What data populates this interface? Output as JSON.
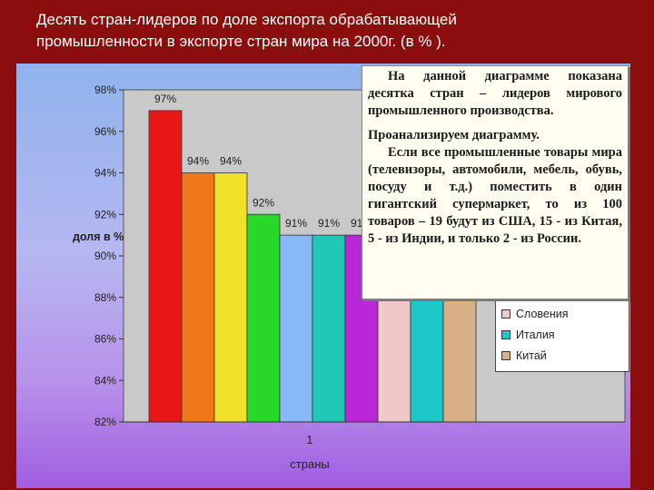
{
  "slide": {
    "title_line1": "Десять стран-лидеров по доле экспорта обрабатывающей",
    "title_line2": "промышленности в экспорте стран мира на 2000г. (в % )."
  },
  "note": {
    "intro": "На данной диаграмме показана десятка стран – лидеров мирового промышленного производства.",
    "lead": "Проанализируем диаграмму.",
    "body": "Если все промышленные товары мира (телевизоры, автомобили, мебель, обувь, посуду и т.д.) поместить в один гигантский супермаркет, то из 100 товаров – 19 будут из США, 15 - из Китая, 5 - из Индии, и только 2 - из России."
  },
  "legend": {
    "items": [
      {
        "label": "Словения",
        "color": "#f0c8c8"
      },
      {
        "label": "Италия",
        "color": "#1dc8c8"
      },
      {
        "label": "Китай",
        "color": "#d8b088"
      }
    ]
  },
  "chart_data": {
    "type": "bar",
    "xlabel": "страны",
    "ylabel": "доля в %",
    "x_tick": "1",
    "ylim": [
      82,
      98
    ],
    "yticks": [
      82,
      84,
      86,
      88,
      90,
      92,
      94,
      96,
      98
    ],
    "ytick_labels": [
      "82%",
      "84%",
      "86%",
      "88%",
      "90%",
      "92%",
      "94%",
      "96%",
      "98%"
    ],
    "grid": false,
    "legend_position": "right",
    "series": [
      {
        "value": 97,
        "label": "97%",
        "color": "#e81818"
      },
      {
        "value": 94,
        "label": "94%",
        "color": "#f07818"
      },
      {
        "value": 94,
        "label": "94%",
        "color": "#f0e028"
      },
      {
        "value": 92,
        "label": "92%",
        "color": "#28d828"
      },
      {
        "value": 91,
        "label": "91%",
        "color": "#88b8f8"
      },
      {
        "value": 91,
        "label": "91%",
        "color": "#20c8b8"
      },
      {
        "value": 91,
        "label": "91%",
        "color": "#b828d8"
      },
      {
        "value": 91,
        "label": "",
        "color": "#f0c8c8"
      },
      {
        "value": 91,
        "label": "",
        "color": "#1dc8c8"
      },
      {
        "value": 91,
        "label": "",
        "color": "#d8b088"
      }
    ]
  }
}
